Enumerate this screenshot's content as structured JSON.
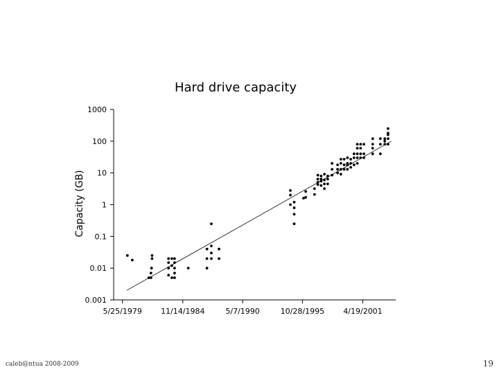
{
  "footer": {
    "author": "caleb@ntua 2008-2009",
    "slide_number": "19"
  },
  "chart_data": {
    "type": "scatter",
    "title": "Hard drive capacity",
    "xlabel": "",
    "ylabel": "Capacity (GB)",
    "yscale": "log",
    "ylim": [
      0.001,
      1000
    ],
    "yticks": [
      {
        "value": 1000,
        "label": "1000"
      },
      {
        "value": 100,
        "label": "100"
      },
      {
        "value": 10,
        "label": "10"
      },
      {
        "value": 1,
        "label": "1"
      },
      {
        "value": 0.1,
        "label": "0.1"
      },
      {
        "value": 0.01,
        "label": "0.01"
      },
      {
        "value": 0.001,
        "label": "0.001"
      }
    ],
    "xlim": [
      1978.6,
      2004.3
    ],
    "xticks": [
      {
        "value": 1979.4,
        "label": "5/25/1979"
      },
      {
        "value": 1984.9,
        "label": "11/14/1984"
      },
      {
        "value": 1990.35,
        "label": "5/7/1990"
      },
      {
        "value": 1995.8,
        "label": "10/28/1995"
      },
      {
        "value": 2001.3,
        "label": "4/19/2001"
      }
    ],
    "trendline": {
      "x": [
        1979.8,
        2003.9
      ],
      "y": [
        0.002,
        100
      ]
    },
    "points": [
      [
        1979.85,
        0.025
      ],
      [
        1980.3,
        0.018
      ],
      [
        1981.8,
        0.005
      ],
      [
        1982.0,
        0.005
      ],
      [
        1982.05,
        0.01
      ],
      [
        1982.1,
        0.02
      ],
      [
        1982.1,
        0.025
      ],
      [
        1982.0,
        0.007
      ],
      [
        1983.6,
        0.02
      ],
      [
        1983.6,
        0.015
      ],
      [
        1983.6,
        0.01
      ],
      [
        1983.6,
        0.006
      ],
      [
        1983.9,
        0.02
      ],
      [
        1983.9,
        0.012
      ],
      [
        1983.9,
        0.005
      ],
      [
        1984.15,
        0.02
      ],
      [
        1984.15,
        0.015
      ],
      [
        1984.15,
        0.01
      ],
      [
        1984.15,
        0.005
      ],
      [
        1984.15,
        0.007
      ],
      [
        1985.4,
        0.01
      ],
      [
        1987.1,
        0.04
      ],
      [
        1987.1,
        0.02
      ],
      [
        1987.1,
        0.01
      ],
      [
        1987.5,
        0.25
      ],
      [
        1987.5,
        0.05
      ],
      [
        1987.5,
        0.03
      ],
      [
        1987.5,
        0.02
      ],
      [
        1988.2,
        0.04
      ],
      [
        1988.2,
        0.02
      ],
      [
        1994.7,
        2.8
      ],
      [
        1994.7,
        2.0
      ],
      [
        1994.7,
        1.0
      ],
      [
        1995.05,
        1.2
      ],
      [
        1995.05,
        0.8
      ],
      [
        1995.05,
        0.5
      ],
      [
        1995.05,
        0.25
      ],
      [
        1995.9,
        1.6
      ],
      [
        1996.1,
        1.7
      ],
      [
        1996.1,
        2.6
      ],
      [
        1996.9,
        3.2
      ],
      [
        1996.9,
        2.1
      ],
      [
        1997.2,
        4.3
      ],
      [
        1997.2,
        5.1
      ],
      [
        1997.2,
        6.4
      ],
      [
        1997.2,
        8.5
      ],
      [
        1997.5,
        4.0
      ],
      [
        1997.5,
        5.5
      ],
      [
        1997.5,
        6.4
      ],
      [
        1997.5,
        8.0
      ],
      [
        1997.8,
        4.5
      ],
      [
        1997.8,
        6.0
      ],
      [
        1997.8,
        9.1
      ],
      [
        1997.8,
        3.2
      ],
      [
        1998.1,
        4.5
      ],
      [
        1998.1,
        6.4
      ],
      [
        1998.1,
        8.0
      ],
      [
        1998.5,
        8.5
      ],
      [
        1998.5,
        13
      ],
      [
        1998.5,
        20
      ],
      [
        1999.0,
        10
      ],
      [
        1999.0,
        13
      ],
      [
        1999.0,
        18
      ],
      [
        1999.3,
        9.1
      ],
      [
        1999.3,
        13
      ],
      [
        1999.3,
        20
      ],
      [
        1999.3,
        27
      ],
      [
        1999.6,
        13
      ],
      [
        1999.6,
        18
      ],
      [
        1999.6,
        27
      ],
      [
        1999.9,
        13
      ],
      [
        1999.9,
        20
      ],
      [
        1999.9,
        30
      ],
      [
        1999.9,
        18
      ],
      [
        2000.2,
        15
      ],
      [
        2000.2,
        20
      ],
      [
        2000.2,
        27
      ],
      [
        2000.5,
        18
      ],
      [
        2000.5,
        30
      ],
      [
        2000.5,
        40
      ],
      [
        2000.8,
        20
      ],
      [
        2000.8,
        30
      ],
      [
        2000.8,
        40
      ],
      [
        2000.8,
        60
      ],
      [
        2000.8,
        80
      ],
      [
        2001.1,
        30
      ],
      [
        2001.1,
        40
      ],
      [
        2001.1,
        60
      ],
      [
        2001.1,
        80
      ],
      [
        2001.4,
        30
      ],
      [
        2001.4,
        40
      ],
      [
        2001.4,
        80
      ],
      [
        2002.2,
        40
      ],
      [
        2002.2,
        60
      ],
      [
        2002.2,
        80
      ],
      [
        2002.2,
        120
      ],
      [
        2002.9,
        40
      ],
      [
        2002.9,
        80
      ],
      [
        2002.9,
        120
      ],
      [
        2003.3,
        80
      ],
      [
        2003.3,
        100
      ],
      [
        2003.3,
        120
      ],
      [
        2003.6,
        80
      ],
      [
        2003.6,
        120
      ],
      [
        2003.6,
        160
      ],
      [
        2003.6,
        250
      ],
      [
        2003.6,
        180
      ]
    ]
  }
}
